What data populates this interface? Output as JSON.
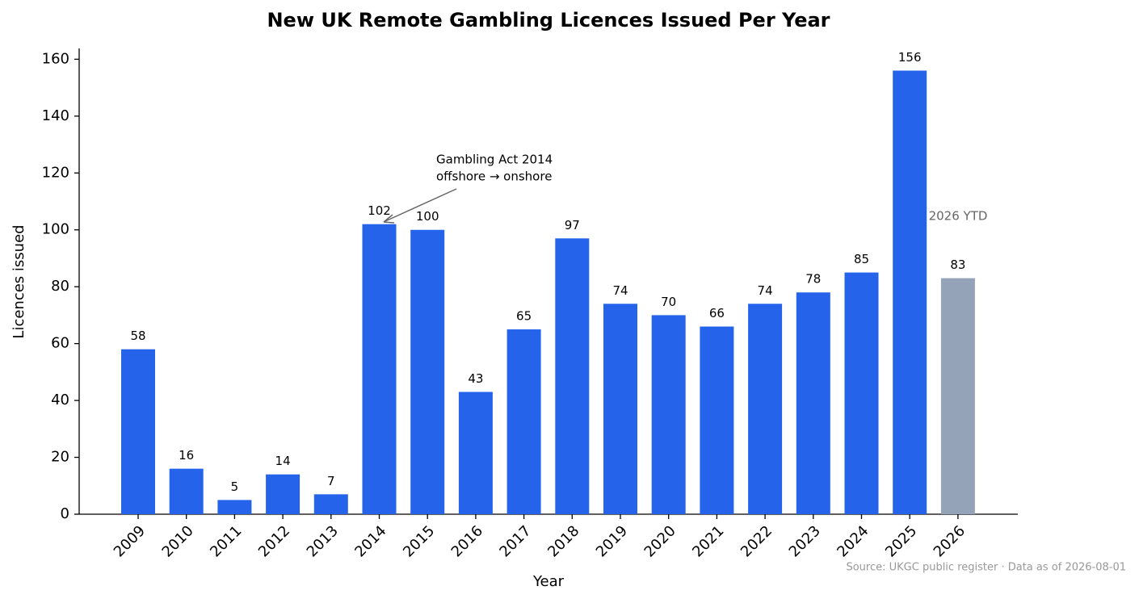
{
  "chart_data": {
    "type": "bar",
    "title": "New UK Remote Gambling Licences Issued Per Year",
    "x_label": "Year",
    "y_label": "Licences issued",
    "categories": [
      "2009",
      "2010",
      "2011",
      "2012",
      "2013",
      "2014",
      "2015",
      "2016",
      "2017",
      "2018",
      "2019",
      "2020",
      "2021",
      "2022",
      "2023",
      "2024",
      "2025",
      "2026"
    ],
    "values": [
      58,
      16,
      5,
      14,
      7,
      102,
      100,
      43,
      65,
      97,
      74,
      70,
      66,
      74,
      78,
      85,
      156,
      83
    ],
    "colors": [
      "#2563eb",
      "#2563eb",
      "#2563eb",
      "#2563eb",
      "#2563eb",
      "#2563eb",
      "#2563eb",
      "#2563eb",
      "#2563eb",
      "#2563eb",
      "#2563eb",
      "#2563eb",
      "#2563eb",
      "#2563eb",
      "#2563eb",
      "#2563eb",
      "#2563eb",
      "#94a3b8"
    ],
    "ylim": [
      0,
      163.8
    ],
    "yticks": [
      0,
      20,
      40,
      60,
      80,
      100,
      120,
      140,
      160
    ],
    "grid": false,
    "annotations": [
      {
        "lines": [
          "Gambling Act 2014",
          "offshore → onshore"
        ]
      },
      {
        "text": "2026 YTD"
      }
    ],
    "source": "Source: UKGC public register · Data as of 2026-08-01"
  }
}
